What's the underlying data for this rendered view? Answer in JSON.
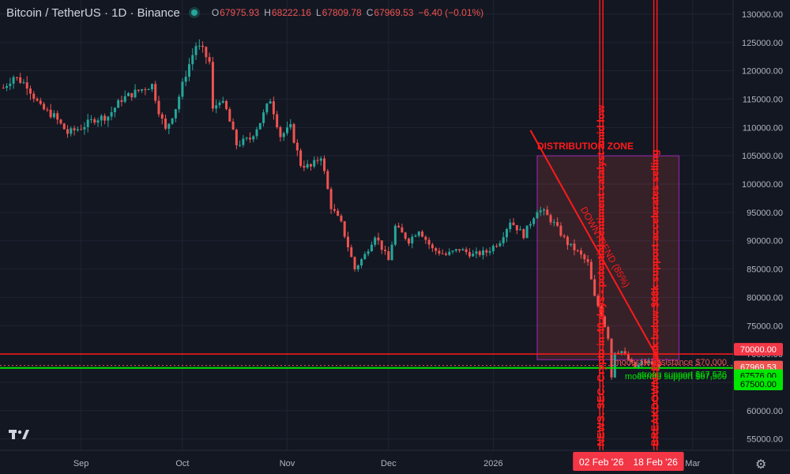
{
  "header": {
    "title": "Bitcoin / TetherUS · 1D · Binance",
    "ohlc": [
      {
        "key": "O",
        "value": "67975.93"
      },
      {
        "key": "H",
        "value": "68222.16"
      },
      {
        "key": "L",
        "value": "67809.78"
      },
      {
        "key": "C",
        "value": "67969.53"
      }
    ],
    "change": "−6.40 (−0.01%)"
  },
  "colors": {
    "background": "#131722",
    "up": "#26a69a",
    "down": "#ef5350",
    "annotation": "#ff1a1a",
    "support": "#00e600",
    "zone_border": "#9c27b0"
  },
  "chart_data": {
    "type": "candlestick",
    "title": "Bitcoin / TetherUS · 1D · Binance",
    "ylim": [
      53000,
      132500
    ],
    "yticks": [
      55000,
      60000,
      65000,
      70000,
      75000,
      80000,
      85000,
      90000,
      95000,
      100000,
      105000,
      110000,
      115000,
      120000,
      125000,
      130000
    ],
    "ytick_labels": [
      "55000.00",
      "60000.00",
      "65000.00",
      "70000.00",
      "75000.00",
      "80000.00",
      "85000.00",
      "90000.00",
      "95000.00",
      "100000.00",
      "105000.00",
      "110000.00",
      "115000.00",
      "120000.00",
      "125000.00",
      "130000.00"
    ],
    "xticks": [
      {
        "label": "Sep",
        "date": "2025-09-01"
      },
      {
        "label": "Oct",
        "date": "2025-10-01"
      },
      {
        "label": "Nov",
        "date": "2025-11-01"
      },
      {
        "label": "Dec",
        "date": "2025-12-01"
      },
      {
        "label": "2026",
        "date": "2026-01-01"
      },
      {
        "label": "Mar",
        "date": "2026-03-01"
      }
    ],
    "x_start": "2025-08-08",
    "x_end": "2026-03-13",
    "path": [
      [
        "2025-08-09",
        117000
      ],
      [
        "2025-08-12",
        119000
      ],
      [
        "2025-08-16",
        117500
      ],
      [
        "2025-08-20",
        113500
      ],
      [
        "2025-08-24",
        112000
      ],
      [
        "2025-08-28",
        109000
      ],
      [
        "2025-09-01",
        110000
      ],
      [
        "2025-09-05",
        111500
      ],
      [
        "2025-09-09",
        112000
      ],
      [
        "2025-09-13",
        115000
      ],
      [
        "2025-09-18",
        116500
      ],
      [
        "2025-09-22",
        117500
      ],
      [
        "2025-09-24",
        113000
      ],
      [
        "2025-09-26",
        109500
      ],
      [
        "2025-09-29",
        113500
      ],
      [
        "2025-10-02",
        119500
      ],
      [
        "2025-10-05",
        124500
      ],
      [
        "2025-10-07",
        123500
      ],
      [
        "2025-10-09",
        121500
      ],
      [
        "2025-10-10",
        113000
      ],
      [
        "2025-10-12",
        115000
      ],
      [
        "2025-10-14",
        113000
      ],
      [
        "2025-10-17",
        107000
      ],
      [
        "2025-10-21",
        108000
      ],
      [
        "2025-10-24",
        111000
      ],
      [
        "2025-10-27",
        115000
      ],
      [
        "2025-10-30",
        108500
      ],
      [
        "2025-11-02",
        110000
      ],
      [
        "2025-11-05",
        103500
      ],
      [
        "2025-11-08",
        103000
      ],
      [
        "2025-11-11",
        105000
      ],
      [
        "2025-11-14",
        96000
      ],
      [
        "2025-11-17",
        93000
      ],
      [
        "2025-11-21",
        85000
      ],
      [
        "2025-11-24",
        87500
      ],
      [
        "2025-11-27",
        91000
      ],
      [
        "2025-12-01",
        86500
      ],
      [
        "2025-12-03",
        92500
      ],
      [
        "2025-12-07",
        90000
      ],
      [
        "2025-12-10",
        92000
      ],
      [
        "2025-12-14",
        88500
      ],
      [
        "2025-12-18",
        87500
      ],
      [
        "2025-12-22",
        88500
      ],
      [
        "2025-12-26",
        87500
      ],
      [
        "2025-12-30",
        88000
      ],
      [
        "2026-01-03",
        90000
      ],
      [
        "2026-01-06",
        93500
      ],
      [
        "2026-01-10",
        91000
      ],
      [
        "2026-01-14",
        95500
      ],
      [
        "2026-01-16",
        95000
      ],
      [
        "2026-01-19",
        93000
      ],
      [
        "2026-01-23",
        89500
      ],
      [
        "2026-01-26",
        88000
      ],
      [
        "2026-01-29",
        86000
      ],
      [
        "2026-01-31",
        80000
      ],
      [
        "2026-02-02",
        77000
      ],
      [
        "2026-02-03",
        75000
      ],
      [
        "2026-02-04",
        73000
      ],
      [
        "2026-02-05",
        66000
      ],
      [
        "2026-02-06",
        70500
      ],
      [
        "2026-02-08",
        70500
      ],
      [
        "2026-02-10",
        69000
      ],
      [
        "2026-02-12",
        67500
      ],
      [
        "2026-02-14",
        68500
      ],
      [
        "2026-02-16",
        68500
      ],
      [
        "2026-02-18",
        67976
      ],
      [
        "2026-02-19",
        67970
      ]
    ],
    "current_price": 67969.53,
    "levels": [
      {
        "label": "moderate resistance  $70,000",
        "price": 70000,
        "axis_label": "70000.00"
      },
      {
        "label": "moderate support  $67,500",
        "price": 67500,
        "axis_label": "67500.00"
      },
      {
        "label": "strong support  $67,576",
        "price": 67576,
        "axis_label": "67576.00"
      }
    ],
    "current_price_label": "67969.53",
    "zone": {
      "label": "DISTRIBUTION ZONE",
      "x1": "2026-01-14",
      "x2": "2026-02-25",
      "y1": 69000,
      "y2": 105000
    },
    "trendline": {
      "label": "DOWNTREND (85%)",
      "x1": "2026-01-12",
      "y1": 109500,
      "x2": "2026-02-18",
      "y2": 70000
    },
    "vlines": [
      {
        "date": "2026-02-02",
        "label": "02 Feb '26",
        "text": "NEWS: SEC: Crypto in 40 days - potential sentiment catalyst amid low"
      },
      {
        "date": "2026-02-18",
        "label": "18 Feb '26",
        "text": "BREAKDOWN: Break below $68k support accelerates selling"
      }
    ]
  }
}
